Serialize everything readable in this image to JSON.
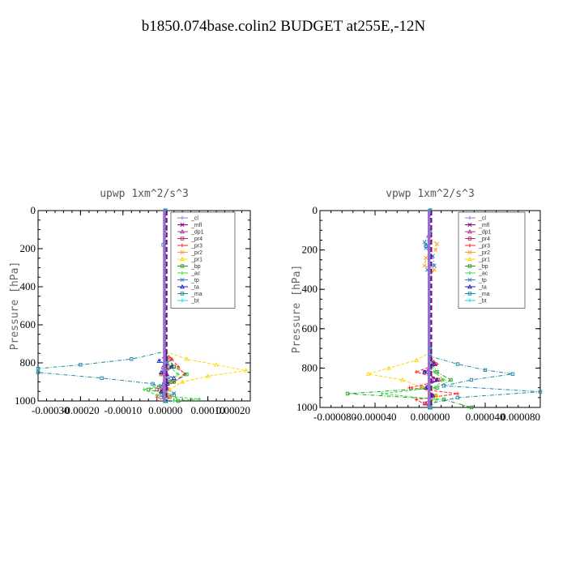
{
  "page": {
    "title": "b1850.074base.colin2  BUDGET at255E,-12N"
  },
  "chart_data": [
    {
      "type": "line",
      "title": "upwp   1xm^2/s^3",
      "ylabel": "Pressure [hPa]",
      "xlim": [
        -0.0003,
        0.0002
      ],
      "ylim": [
        1000,
        0
      ],
      "xticks": [
        "-0.00030",
        "-0.00020",
        "-0.00010",
        "0.00000",
        "0.00010",
        "0.00020"
      ],
      "yticks": [
        "0",
        "200",
        "400",
        "600",
        "800",
        "1000"
      ],
      "legend_position": "top-right",
      "colors": {
        "_cl": "#a06ad0",
        "_mfl": "#800080",
        "_dp1": "#b0309a",
        "_pr4": "#b03060",
        "_pr3": "#ff2020",
        "_pr2": "#ffa030",
        "_pr1": "#ffd700",
        "_bp": "#20a020",
        "_ac": "#33dd33",
        "_tp": "#3a7ad0",
        "_ta": "#2020c0",
        "_ma": "#1a8aa0",
        "_bt": "#00e0e0"
      },
      "series": [
        {
          "name": "_cl",
          "y": [
            0,
            700,
            760,
            800,
            840,
            880,
            920,
            960,
            1000
          ],
          "values": [
            0,
            0,
            0,
            0,
            0,
            0,
            0,
            0,
            0
          ]
        },
        {
          "name": "_mfl",
          "y": [
            0,
            700,
            760,
            800,
            840,
            880,
            920,
            960,
            1000
          ],
          "values": [
            0,
            0,
            0,
            0,
            0,
            0,
            0,
            0,
            0
          ]
        },
        {
          "name": "_dp1",
          "y": [
            0,
            740,
            780,
            820,
            860,
            900,
            940,
            980,
            1000
          ],
          "values": [
            0,
            0,
            3e-06,
            -5e-06,
            4e-06,
            -3e-06,
            6e-06,
            -4e-06,
            0
          ]
        },
        {
          "name": "_pr4",
          "y": [
            0,
            740,
            780,
            820,
            860,
            900,
            940,
            980,
            1000
          ],
          "values": [
            0,
            0,
            1e-05,
            2e-05,
            -1e-05,
            1e-05,
            -2e-05,
            1e-05,
            0
          ]
        },
        {
          "name": "_pr3",
          "y": [
            0,
            740,
            780,
            820,
            860,
            900,
            940,
            980,
            1000
          ],
          "values": [
            0,
            0,
            1.5e-05,
            3e-05,
            4.5e-05,
            2e-05,
            -1e-05,
            -2e-05,
            0
          ]
        },
        {
          "name": "_pr2",
          "y": [
            0,
            740,
            780,
            820,
            860,
            900,
            940,
            980,
            1000
          ],
          "values": [
            0,
            0,
            5e-06,
            1e-05,
            -1e-05,
            1.5e-05,
            -1e-05,
            1e-05,
            0
          ]
        },
        {
          "name": "_pr1",
          "y": [
            0,
            740,
            780,
            810,
            840,
            870,
            900,
            940,
            980,
            1000
          ],
          "values": [
            0,
            0,
            5e-05,
            0.00012,
            0.00019,
            0.0001,
            4e-05,
            1e-05,
            0,
            0
          ]
        },
        {
          "name": "_bp",
          "y": [
            0,
            760,
            820,
            860,
            900,
            940,
            970,
            1000
          ],
          "values": [
            0,
            0,
            2e-05,
            5e-05,
            2e-05,
            -4e-05,
            2e-05,
            3e-05
          ]
        },
        {
          "name": "_ac",
          "y": [
            0,
            760,
            820,
            860,
            900,
            940,
            970,
            990,
            1000
          ],
          "values": [
            0,
            0,
            1e-05,
            3e-05,
            1e-05,
            -5e-05,
            -2e-05,
            8e-05,
            2e-05
          ]
        },
        {
          "name": "_tp",
          "y": [
            0,
            760,
            800,
            840,
            880,
            920,
            960,
            1000
          ],
          "values": [
            0,
            0,
            5e-06,
            -5e-06,
            8e-06,
            -1e-05,
            2e-05,
            0
          ]
        },
        {
          "name": "_ta",
          "y": [
            0,
            760,
            790,
            820,
            850,
            880,
            910,
            950,
            1000
          ],
          "values": [
            0,
            0,
            -1.5e-05,
            1.5e-05,
            -1e-05,
            2e-05,
            5e-06,
            -1e-05,
            0
          ]
        },
        {
          "name": "_ma",
          "y": [
            0,
            100,
            180,
            200,
            700,
            740,
            780,
            810,
            830,
            850,
            880,
            910,
            940,
            970,
            1000
          ],
          "values": [
            0,
            0,
            -5e-06,
            0,
            0,
            0,
            -8e-05,
            -0.0002,
            -0.0003,
            -0.0003,
            -0.00015,
            -3e-05,
            0,
            -1e-05,
            0
          ]
        },
        {
          "name": "_bt",
          "y": [
            0,
            700,
            800,
            900,
            1000
          ],
          "values": [
            0,
            0,
            0,
            0,
            0
          ]
        }
      ]
    },
    {
      "type": "line",
      "title": "vpwp   1xm^2/s^3",
      "ylabel": "Pressure [hPa]",
      "xlim": [
        -8e-05,
        8e-05
      ],
      "ylim": [
        1000,
        0
      ],
      "xticks": [
        "-0.000080",
        "-0.000040",
        "0.000000",
        "0.000040",
        "0.000080"
      ],
      "yticks": [
        "0",
        "200",
        "400",
        "600",
        "800",
        "1000"
      ],
      "legend_position": "top-right",
      "colors": {
        "_cl": "#a06ad0",
        "_mfl": "#800080",
        "_dp1": "#b0309a",
        "_pr4": "#b03060",
        "_pr3": "#ff2020",
        "_pr2": "#ffa030",
        "_pr1": "#ffd700",
        "_bp": "#20a020",
        "_ac": "#33dd33",
        "_tp": "#3a7ad0",
        "_ta": "#2020c0",
        "_ma": "#1a8aa0",
        "_bt": "#00e0e0"
      },
      "series": [
        {
          "name": "_cl",
          "y": [
            0,
            700,
            800,
            900,
            1000
          ],
          "values": [
            0,
            0,
            0,
            0,
            0
          ]
        },
        {
          "name": "_mfl",
          "y": [
            0,
            700,
            800,
            900,
            1000
          ],
          "values": [
            0,
            0,
            0,
            0,
            0
          ]
        },
        {
          "name": "_dp1",
          "y": [
            0,
            740,
            780,
            820,
            860,
            900,
            940,
            980,
            1000
          ],
          "values": [
            0,
            0,
            2e-06,
            -2e-06,
            3e-06,
            -2e-06,
            2e-06,
            -3e-06,
            0
          ]
        },
        {
          "name": "_pr4",
          "y": [
            0,
            740,
            780,
            820,
            860,
            900,
            940,
            980,
            1000
          ],
          "values": [
            0,
            0,
            4e-06,
            -4e-06,
            6e-06,
            -6e-06,
            4e-06,
            -4e-06,
            0
          ]
        },
        {
          "name": "_pr3",
          "y": [
            0,
            740,
            780,
            820,
            860,
            900,
            930,
            960,
            1000
          ],
          "values": [
            0,
            0,
            5e-06,
            -1e-05,
            1e-05,
            -1.5e-05,
            2e-05,
            -1e-05,
            0
          ]
        },
        {
          "name": "_pr2",
          "y": [
            0,
            140,
            170,
            200,
            240,
            280,
            300,
            340,
            700,
            1000
          ],
          "values": [
            0,
            0,
            5e-06,
            4e-06,
            -3e-06,
            -4e-06,
            3e-06,
            0,
            0,
            0
          ]
        },
        {
          "name": "_pr1",
          "y": [
            0,
            720,
            760,
            800,
            830,
            860,
            900,
            940,
            980,
            1000
          ],
          "values": [
            0,
            0,
            -1e-05,
            -3e-05,
            -4.5e-05,
            -2e-05,
            -5e-06,
            5e-06,
            0,
            0
          ]
        },
        {
          "name": "_bp",
          "y": [
            0,
            760,
            820,
            860,
            900,
            930,
            960,
            1000
          ],
          "values": [
            0,
            0,
            5e-06,
            1.5e-05,
            5e-06,
            -6e-05,
            1e-05,
            3e-05
          ]
        },
        {
          "name": "_ac",
          "y": [
            0,
            760,
            820,
            860,
            900,
            930,
            960,
            1000
          ],
          "values": [
            0,
            0,
            3e-06,
            1e-05,
            3e-06,
            -3.5e-05,
            5e-06,
            0
          ]
        },
        {
          "name": "_tp",
          "y": [
            0,
            100,
            160,
            190,
            230,
            280,
            300,
            340,
            700,
            1000
          ],
          "values": [
            0,
            0,
            -4e-06,
            -3e-06,
            2e-06,
            3e-06,
            -2e-06,
            0,
            0,
            0
          ]
        },
        {
          "name": "_ta",
          "y": [
            0,
            740,
            780,
            820,
            860,
            900,
            940,
            1000
          ],
          "values": [
            0,
            0,
            3e-06,
            -4e-06,
            5e-06,
            -3e-06,
            2e-06,
            0
          ]
        },
        {
          "name": "_ma",
          "y": [
            0,
            100,
            180,
            200,
            700,
            740,
            780,
            810,
            830,
            860,
            890,
            920,
            950,
            980,
            1000
          ],
          "values": [
            0,
            0,
            -3e-06,
            0,
            0,
            0,
            2e-05,
            4e-05,
            6e-05,
            3e-05,
            1e-05,
            8e-05,
            2e-05,
            0,
            0
          ]
        },
        {
          "name": "_bt",
          "y": [
            0,
            700,
            800,
            900,
            1000
          ],
          "values": [
            0,
            0,
            0,
            0,
            0
          ]
        }
      ]
    }
  ]
}
